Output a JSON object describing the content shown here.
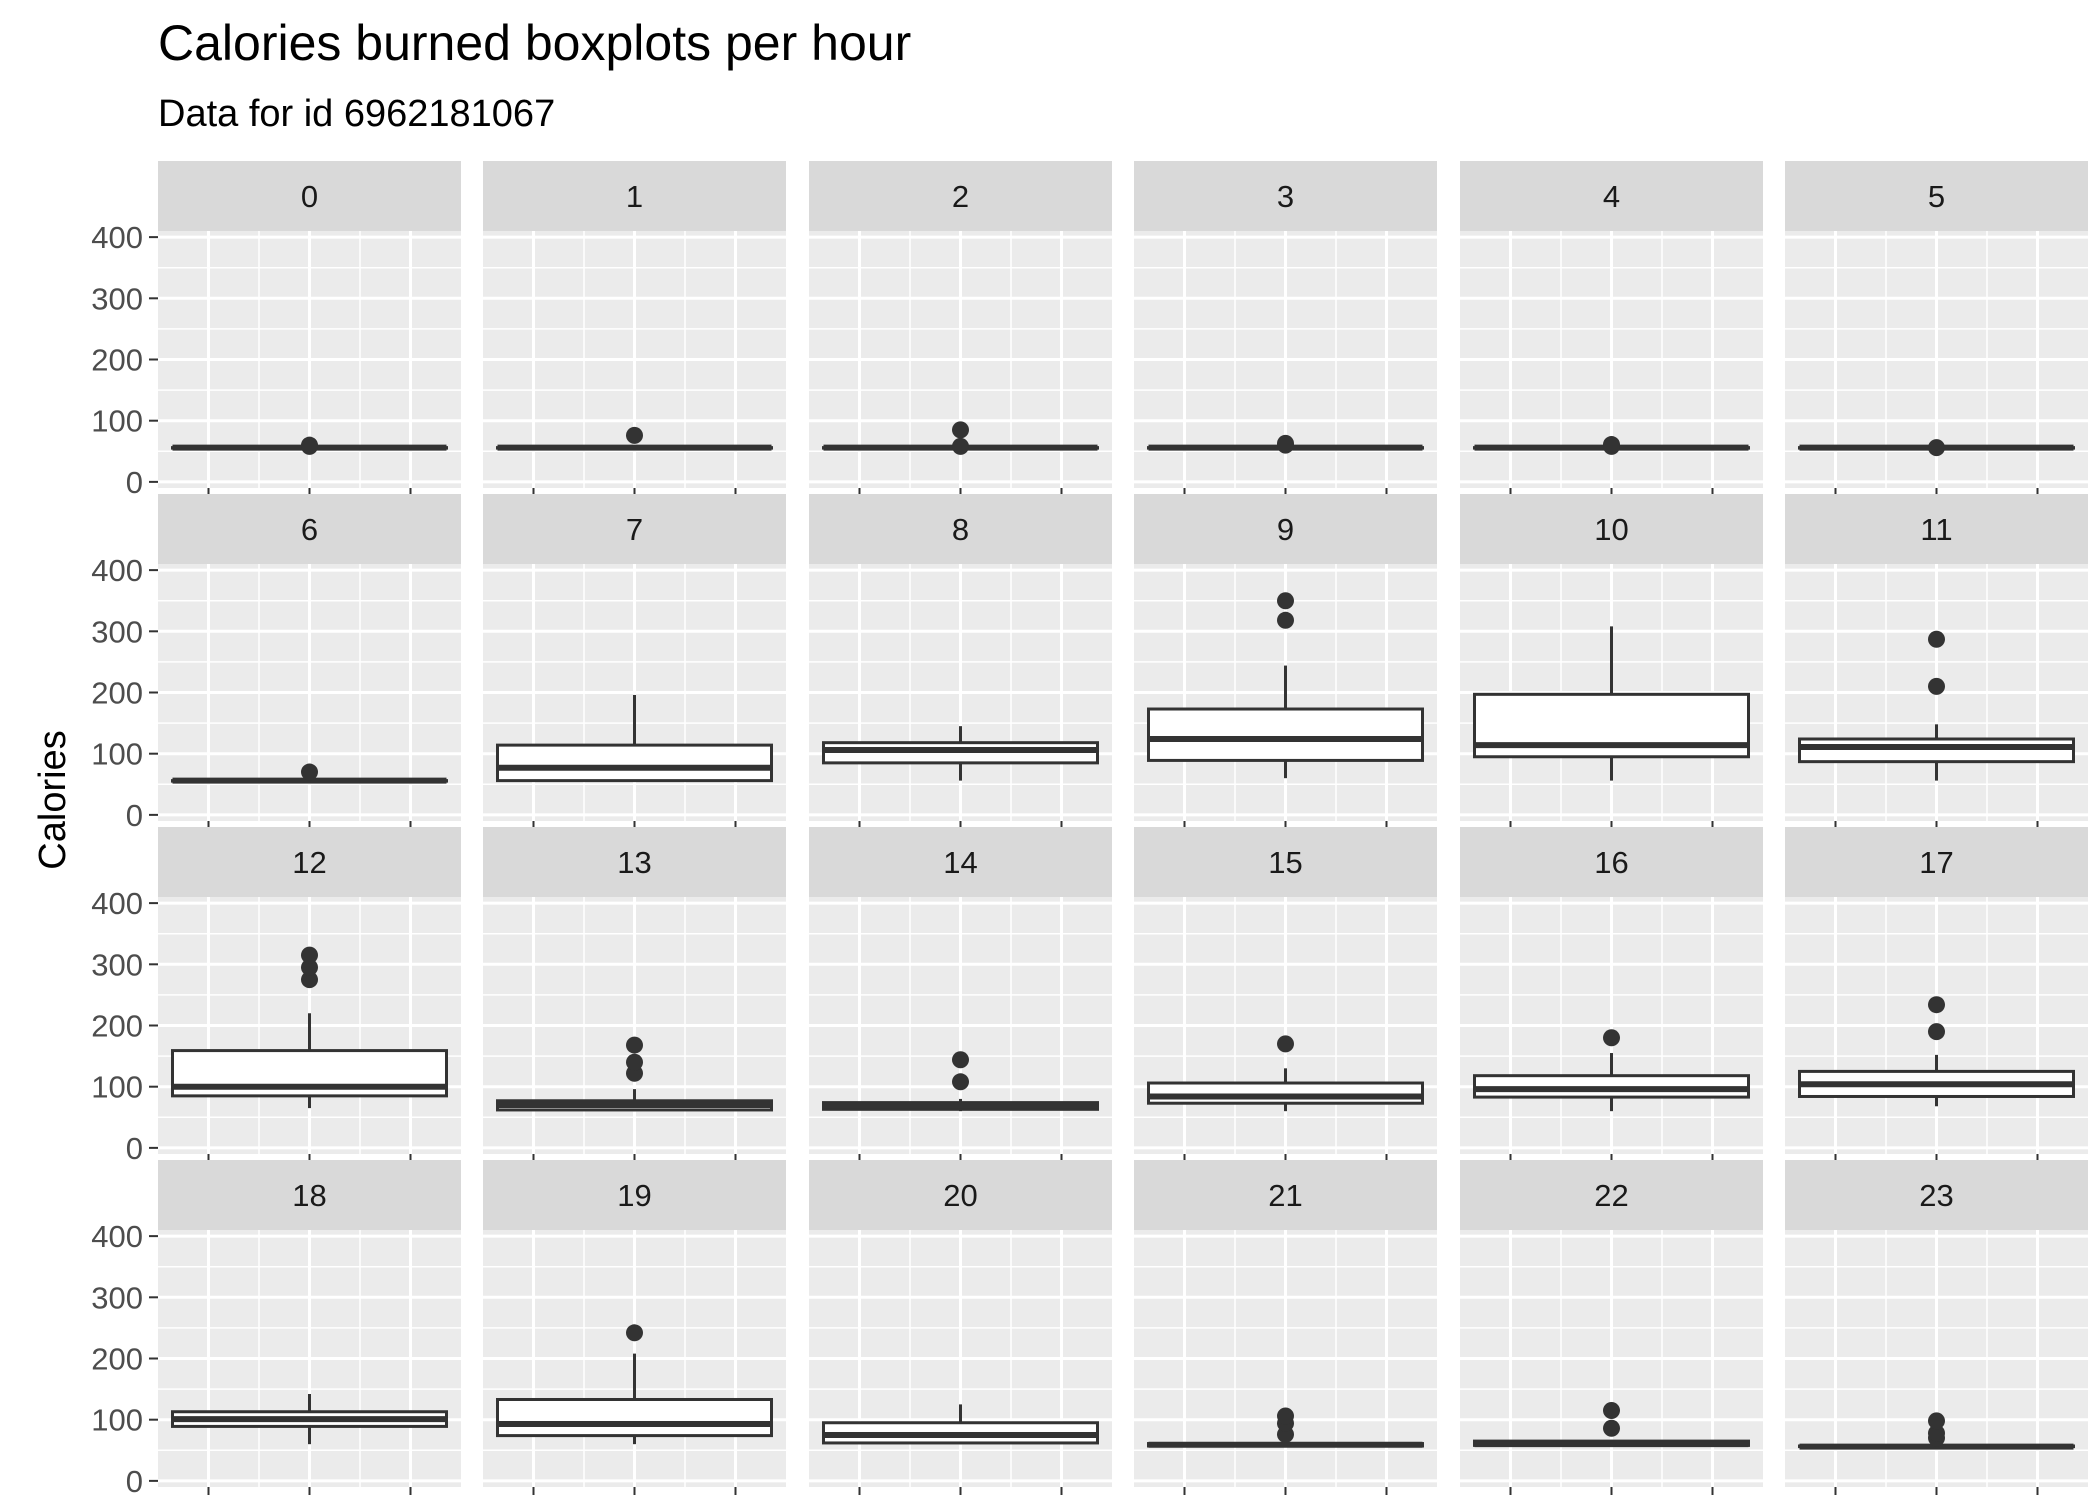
{
  "chart_data": {
    "type": "boxplot",
    "title": "Calories burned boxplots per hour",
    "subtitle": "Data for id 6962181067",
    "ylabel": "Calories",
    "xlabel": "",
    "ylim": [
      -10,
      410
    ],
    "yticks": [
      0,
      100,
      200,
      300,
      400
    ],
    "facets": [
      {
        "label": "0",
        "lower": 56,
        "q1": 56,
        "median": 56,
        "q3": 56,
        "upper": 56,
        "outliers": [
          58,
          60
        ]
      },
      {
        "label": "1",
        "lower": 56,
        "q1": 56,
        "median": 56,
        "q3": 56,
        "upper": 56,
        "outliers": [
          76
        ]
      },
      {
        "label": "2",
        "lower": 56,
        "q1": 56,
        "median": 56,
        "q3": 56,
        "upper": 56,
        "outliers": [
          58,
          85
        ]
      },
      {
        "label": "3",
        "lower": 56,
        "q1": 56,
        "median": 56,
        "q3": 56,
        "upper": 56,
        "outliers": [
          60,
          63
        ]
      },
      {
        "label": "4",
        "lower": 56,
        "q1": 56,
        "median": 56,
        "q3": 56,
        "upper": 56,
        "outliers": [
          58,
          61
        ]
      },
      {
        "label": "5",
        "lower": 56,
        "q1": 56,
        "median": 56,
        "q3": 56,
        "upper": 56,
        "outliers": [
          56
        ]
      },
      {
        "label": "6",
        "lower": 56,
        "q1": 56,
        "median": 56,
        "q3": 56,
        "upper": 56,
        "outliers": [
          70
        ]
      },
      {
        "label": "7",
        "lower": 56,
        "q1": 56,
        "median": 77,
        "q3": 114,
        "upper": 196,
        "outliers": []
      },
      {
        "label": "8",
        "lower": 56,
        "q1": 85,
        "median": 106,
        "q3": 118,
        "upper": 145,
        "outliers": []
      },
      {
        "label": "9",
        "lower": 60,
        "q1": 89,
        "median": 124,
        "q3": 173,
        "upper": 244,
        "outliers": [
          318,
          350
        ]
      },
      {
        "label": "10",
        "lower": 56,
        "q1": 95,
        "median": 114,
        "q3": 197,
        "upper": 308,
        "outliers": []
      },
      {
        "label": "11",
        "lower": 56,
        "q1": 87,
        "median": 111,
        "q3": 124,
        "upper": 148,
        "outliers": [
          210,
          287
        ]
      },
      {
        "label": "12",
        "lower": 65,
        "q1": 85,
        "median": 100,
        "q3": 159,
        "upper": 220,
        "outliers": [
          275,
          295,
          315
        ]
      },
      {
        "label": "13",
        "lower": 60,
        "q1": 62,
        "median": 70,
        "q3": 77,
        "upper": 96,
        "outliers": [
          122,
          140,
          168
        ]
      },
      {
        "label": "14",
        "lower": 60,
        "q1": 63,
        "median": 69,
        "q3": 74,
        "upper": 80,
        "outliers": [
          108,
          144
        ]
      },
      {
        "label": "15",
        "lower": 60,
        "q1": 73,
        "median": 84,
        "q3": 106,
        "upper": 130,
        "outliers": [
          170
        ]
      },
      {
        "label": "16",
        "lower": 60,
        "q1": 83,
        "median": 96,
        "q3": 118,
        "upper": 155,
        "outliers": [
          180
        ]
      },
      {
        "label": "17",
        "lower": 68,
        "q1": 84,
        "median": 104,
        "q3": 125,
        "upper": 152,
        "outliers": [
          190,
          234
        ]
      },
      {
        "label": "18",
        "lower": 60,
        "q1": 89,
        "median": 101,
        "q3": 113,
        "upper": 142,
        "outliers": []
      },
      {
        "label": "19",
        "lower": 60,
        "q1": 74,
        "median": 93,
        "q3": 133,
        "upper": 208,
        "outliers": [
          242
        ]
      },
      {
        "label": "20",
        "lower": 60,
        "q1": 62,
        "median": 75,
        "q3": 95,
        "upper": 125,
        "outliers": []
      },
      {
        "label": "21",
        "lower": 56,
        "q1": 57,
        "median": 59,
        "q3": 61,
        "upper": 65,
        "outliers": [
          76,
          94,
          106
        ]
      },
      {
        "label": "22",
        "lower": 56,
        "q1": 58,
        "median": 60,
        "q3": 65,
        "upper": 67,
        "outliers": [
          86,
          115
        ]
      },
      {
        "label": "23",
        "lower": 56,
        "q1": 56,
        "median": 56,
        "q3": 57,
        "upper": 58,
        "outliers": [
          70,
          78,
          98
        ]
      }
    ]
  },
  "colors": {
    "panel_background": "#ebebeb",
    "strip_background": "#d9d9d9",
    "grid": "#ffffff",
    "box_line": "#333333",
    "box_fill": "#ffffff"
  }
}
